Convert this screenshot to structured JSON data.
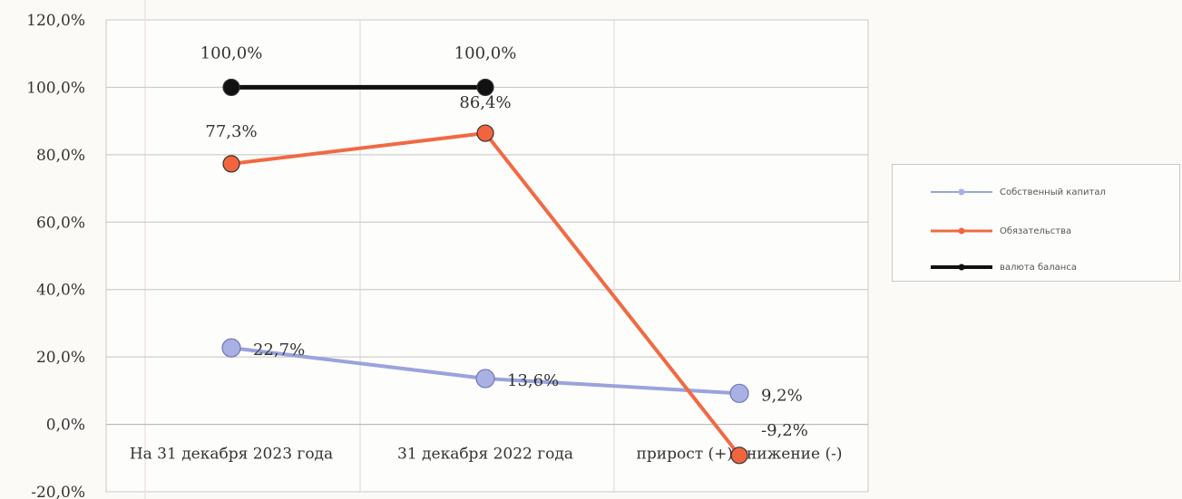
{
  "chart_data": {
    "type": "line",
    "categories": [
      "На 31 декабря 2023 года",
      "31 декабря 2022 года",
      "прирост (+) снижение (-)"
    ],
    "ylim": [
      -20,
      120
    ],
    "yticks": [
      -20,
      0,
      20,
      40,
      60,
      80,
      100,
      120
    ],
    "ytick_labels": [
      "-20,0%",
      "0,0%",
      "20,0%",
      "40,0%",
      "60,0%",
      "80,0%",
      "100,0%",
      "120,0%"
    ],
    "grid": true,
    "legend_position": "right",
    "series": [
      {
        "name": "Собственный капитал",
        "values": [
          22.7,
          13.6,
          9.2
        ],
        "labels": [
          "22,7%",
          "13,6%",
          "9,2%"
        ],
        "color": "#9aa3dc",
        "marker_fill": "#a9b0e4"
      },
      {
        "name": "Обязательства",
        "values": [
          77.3,
          86.4,
          -9.2
        ],
        "labels": [
          "77,3%",
          "86,4%",
          "-9,2%"
        ],
        "color": "#f06a44",
        "marker_fill": "#f0653e"
      },
      {
        "name": "валюта баланса",
        "values": [
          100,
          100,
          null
        ],
        "labels": [
          "100,0%",
          "100,0%",
          ""
        ],
        "color": "#111111",
        "marker_fill": "#111111"
      }
    ]
  }
}
